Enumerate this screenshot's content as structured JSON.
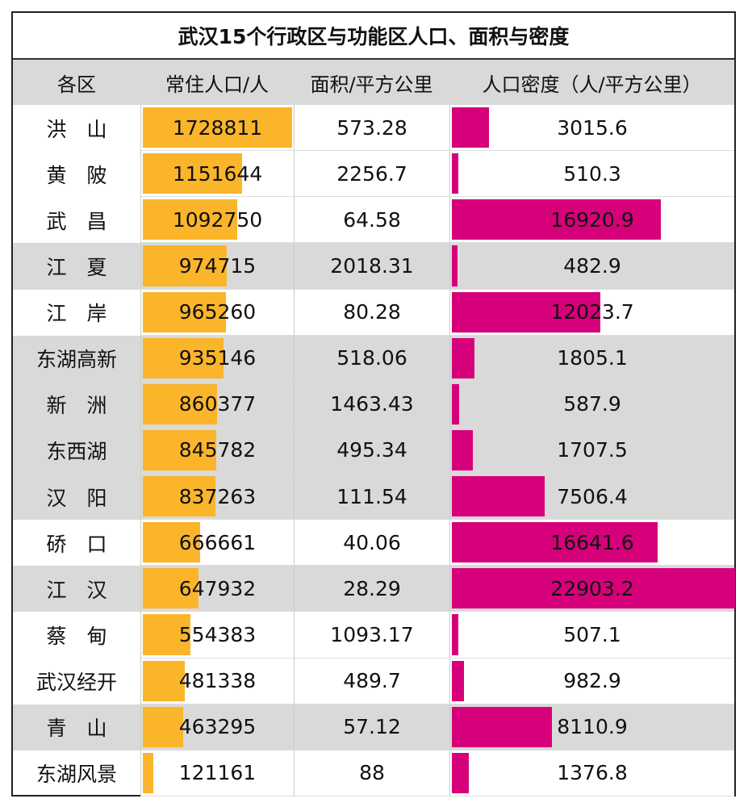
{
  "chart_data": {
    "type": "table",
    "title": "武汉15个行政区与功能区人口、面积与密度",
    "columns": [
      "各区",
      "常住人口/人",
      "面积/平方公里",
      "人口密度（人/平方公里）"
    ],
    "rows": [
      {
        "district": "洪　山",
        "population": 1728811,
        "area": "573.28",
        "density": 3015.6,
        "density_label": "3015.6"
      },
      {
        "district": "黄　陂",
        "population": 1151644,
        "area": "2256.7",
        "density": 510.3,
        "density_label": "510.3"
      },
      {
        "district": "武　昌",
        "population": 1092750,
        "area": "64.58",
        "density": 16920.9,
        "density_label": "16920.9"
      },
      {
        "district": "江　夏",
        "population": 974715,
        "area": "2018.31",
        "density": 482.9,
        "density_label": "482.9"
      },
      {
        "district": "江　岸",
        "population": 965260,
        "area": "80.28",
        "density": 12023.7,
        "density_label": "12023.7"
      },
      {
        "district": "东湖高新",
        "population": 935146,
        "area": "518.06",
        "density": 1805.1,
        "density_label": "1805.1"
      },
      {
        "district": "新　洲",
        "population": 860377,
        "area": "1463.43",
        "density": 587.9,
        "density_label": "587.9"
      },
      {
        "district": "东西湖",
        "population": 845782,
        "area": "495.34",
        "density": 1707.5,
        "density_label": "1707.5"
      },
      {
        "district": "汉　阳",
        "population": 837263,
        "area": "111.54",
        "density": 7506.4,
        "density_label": "7506.4"
      },
      {
        "district": "硚　口",
        "population": 666661,
        "area": "40.06",
        "density": 16641.6,
        "density_label": "16641.6"
      },
      {
        "district": "江　汉",
        "population": 647932,
        "area": "28.29",
        "density": 22903.2,
        "density_label": "22903.2"
      },
      {
        "district": "蔡　甸",
        "population": 554383,
        "area": "1093.17",
        "density": 507.1,
        "density_label": "507.1"
      },
      {
        "district": "武汉经开",
        "population": 481338,
        "area": "489.7",
        "density": 982.9,
        "density_label": "982.9"
      },
      {
        "district": "青　山",
        "population": 463295,
        "area": "57.12",
        "density": 8110.9,
        "density_label": "8110.9"
      },
      {
        "district": "东湖风景",
        "population": 121161,
        "area": "88",
        "density": 1376.8,
        "density_label": "1376.8"
      }
    ],
    "shaded_rows": [
      3,
      5,
      6,
      7,
      8,
      10,
      13
    ],
    "colors": {
      "population_bar": "#fbb52a",
      "density_bar": "#d6007a",
      "shade": "#d9d9d9"
    }
  }
}
